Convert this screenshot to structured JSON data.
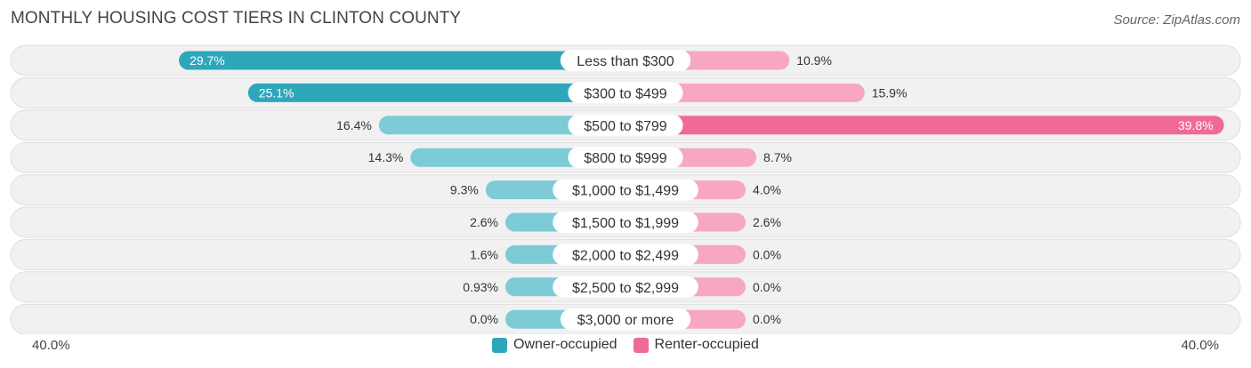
{
  "header": {
    "title": "MONTHLY HOUSING COST TIERS IN CLINTON COUNTY",
    "source": "Source: ZipAtlas.com"
  },
  "colors": {
    "owner_strong": "#2ea7bb",
    "owner_light": "#7ccbd6",
    "renter_strong": "#f06a96",
    "renter_light": "#f7a7c1"
  },
  "chart_data": {
    "type": "bar",
    "orientation": "horizontal-diverging",
    "title": "MONTHLY HOUSING COST TIERS IN CLINTON COUNTY",
    "categories": [
      "Less than $300",
      "$300 to $499",
      "$500 to $799",
      "$800 to $999",
      "$1,000 to $1,499",
      "$1,500 to $1,999",
      "$2,000 to $2,499",
      "$2,500 to $2,999",
      "$3,000 or more"
    ],
    "series": [
      {
        "name": "Owner-occupied",
        "values": [
          29.7,
          25.1,
          16.4,
          14.3,
          9.3,
          2.6,
          1.6,
          0.93,
          0.0
        ],
        "labels": [
          "29.7%",
          "25.1%",
          "16.4%",
          "14.3%",
          "9.3%",
          "2.6%",
          "1.6%",
          "0.93%",
          "0.0%"
        ]
      },
      {
        "name": "Renter-occupied",
        "values": [
          10.9,
          15.9,
          39.8,
          8.7,
          4.0,
          2.6,
          0.0,
          0.0,
          0.0
        ],
        "labels": [
          "10.9%",
          "15.9%",
          "39.8%",
          "8.7%",
          "4.0%",
          "2.6%",
          "0.0%",
          "0.0%",
          "0.0%"
        ]
      }
    ],
    "xlim": [
      -40,
      40
    ],
    "axis_left_label": "40.0%",
    "axis_right_label": "40.0%",
    "legend_position": "bottom-center"
  }
}
